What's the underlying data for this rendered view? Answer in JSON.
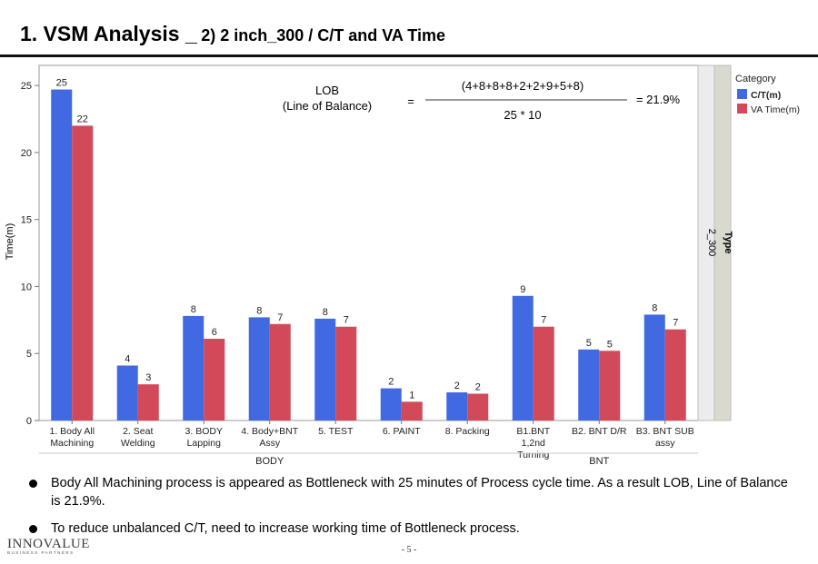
{
  "slide": {
    "title_main": "1. VSM Analysis _",
    "title_sub": "2) 2 inch_300 / C/T and VA Time",
    "page_number": "- 5 -",
    "logo_name": "INNOVALUE",
    "logo_tagline": "BUSINESS PARTNERS"
  },
  "bullets": [
    "Body All Machining process is appeared as Bottleneck with 25 minutes of Process cycle time. As a result LOB, Line of Balance is 21.9%.",
    "To reduce unbalanced C/T, need to increase working time of Bottleneck process."
  ],
  "chart_data": {
    "type": "bar",
    "ylabel": "Time(m)",
    "ylim": [
      0,
      26.5
    ],
    "yticks": [
      0,
      5,
      10,
      15,
      20,
      25
    ],
    "grid": false,
    "legend_title": "Category",
    "legend_position": "right",
    "categories": [
      [
        "1. Body All",
        "Machining"
      ],
      [
        "2. Seat",
        "Welding"
      ],
      [
        "3. BODY",
        "Lapping"
      ],
      [
        "4. Body+BNT",
        "Assy"
      ],
      [
        "5. TEST"
      ],
      [
        "6. PAINT"
      ],
      [
        "8. Packing"
      ],
      [
        "B1.BNT",
        "1,2nd",
        "Turning"
      ],
      [
        "B2. BNT D/R"
      ],
      [
        "B3. BNT SUB",
        "assy"
      ]
    ],
    "groups": [
      {
        "label": "BODY",
        "from": 0,
        "to": 6
      },
      {
        "label": "BNT",
        "from": 7,
        "to": 9
      }
    ],
    "facet": {
      "title": "Type",
      "value": "2_300"
    },
    "series": [
      {
        "name": "C/T(m)",
        "color": "#4169E1",
        "values": [
          24.7,
          4.1,
          7.8,
          7.7,
          7.6,
          2.4,
          2.1,
          9.3,
          5.3,
          7.9
        ],
        "labels": [
          "25",
          "4",
          "8",
          "8",
          "8",
          "2",
          "2",
          "9",
          "5",
          "8"
        ]
      },
      {
        "name": "VA Time(m)",
        "color": "#D2495A",
        "values": [
          22.0,
          2.7,
          6.1,
          7.2,
          7.0,
          1.4,
          2.0,
          7.0,
          5.2,
          6.8
        ],
        "labels": [
          "22",
          "3",
          "6",
          "7",
          "7",
          "1",
          "2",
          "7",
          "5",
          "7"
        ]
      }
    ],
    "annotation": {
      "lhs_line1": "LOB",
      "lhs_line2": "(Line of Balance)",
      "equals": "=",
      "numerator": "(4+8+8+8+2+2+9+5+8)",
      "denominator": "25 * 10",
      "result": "= 21.9%"
    }
  }
}
